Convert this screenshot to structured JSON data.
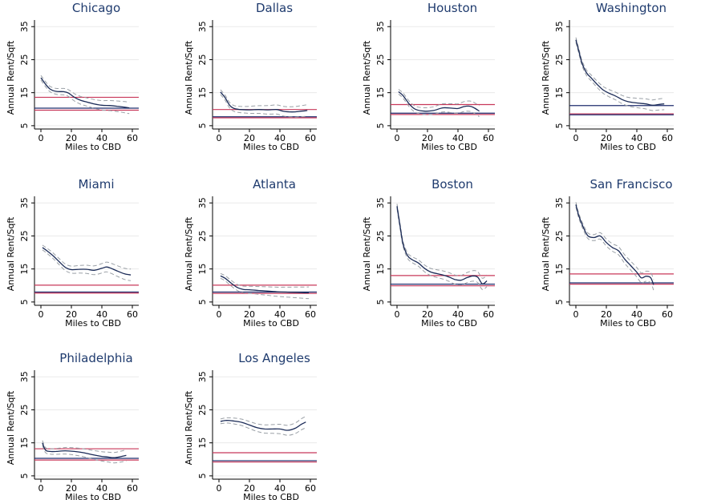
{
  "chart_data": [
    {
      "type": "line",
      "title": "Chicago",
      "xlabel": "Miles to CBD",
      "ylabel": "Annual Rent/Sqft",
      "xlim": [
        0,
        60
      ],
      "ylim": [
        4,
        37
      ],
      "xticks": [
        0,
        20,
        40,
        60
      ],
      "yticks": [
        5,
        15,
        25,
        35
      ],
      "hlines": [
        {
          "y": 13.6,
          "color": "#c8385a"
        },
        {
          "y": 10.3,
          "color": "#1f2d6e"
        },
        {
          "y": 9.7,
          "color": "#c8385a"
        }
      ],
      "series": [
        {
          "values": [
            [
              0,
              19.5
            ],
            [
              3,
              17.6
            ],
            [
              6,
              16.1
            ],
            [
              10,
              15.4
            ],
            [
              15,
              15.3
            ],
            [
              18,
              14.9
            ],
            [
              22,
              13.6
            ],
            [
              26,
              12.7
            ],
            [
              30,
              12.2
            ],
            [
              35,
              11.6
            ],
            [
              40,
              11.2
            ],
            [
              45,
              11.1
            ],
            [
              50,
              10.9
            ],
            [
              55,
              10.6
            ],
            [
              58,
              10.4
            ]
          ]
        }
      ]
    },
    {
      "type": "line",
      "title": "Dallas",
      "xlabel": "Miles to CBD",
      "ylabel": "Annual Rent/Sqft",
      "xlim": [
        0,
        60
      ],
      "ylim": [
        4,
        37
      ],
      "xticks": [
        0,
        20,
        40,
        60
      ],
      "yticks": [
        5,
        15,
        25,
        35
      ],
      "hlines": [
        {
          "y": 9.9,
          "color": "#c8385a"
        },
        {
          "y": 7.7,
          "color": "#1f2d6e"
        },
        {
          "y": 7.4,
          "color": "#c8385a"
        }
      ],
      "series": [
        {
          "values": [
            [
              1,
              15.2
            ],
            [
              4,
              13.5
            ],
            [
              7,
              11.2
            ],
            [
              10,
              10.2
            ],
            [
              14,
              9.9
            ],
            [
              20,
              9.8
            ],
            [
              26,
              9.9
            ],
            [
              32,
              9.8
            ],
            [
              38,
              9.9
            ],
            [
              42,
              9.4
            ],
            [
              46,
              9.2
            ],
            [
              50,
              9.2
            ],
            [
              54,
              9.4
            ],
            [
              58,
              9.6
            ]
          ]
        }
      ]
    },
    {
      "type": "line",
      "title": "Houston",
      "xlabel": "Miles to CBD",
      "ylabel": "Annual Rent/Sqft",
      "xlim": [
        0,
        60
      ],
      "ylim": [
        4,
        37
      ],
      "xticks": [
        0,
        20,
        40,
        60
      ],
      "yticks": [
        5,
        15,
        25,
        35
      ],
      "hlines": [
        {
          "y": 11.4,
          "color": "#c8385a"
        },
        {
          "y": 8.8,
          "color": "#1f2d6e"
        },
        {
          "y": 8.4,
          "color": "#c8385a"
        }
      ],
      "series": [
        {
          "values": [
            [
              1,
              15.3
            ],
            [
              4,
              14.1
            ],
            [
              8,
              11.6
            ],
            [
              12,
              10.0
            ],
            [
              18,
              9.4
            ],
            [
              24,
              9.6
            ],
            [
              30,
              10.4
            ],
            [
              36,
              10.3
            ],
            [
              40,
              10.2
            ],
            [
              44,
              10.8
            ],
            [
              48,
              10.9
            ],
            [
              51,
              10.3
            ],
            [
              54,
              9.4
            ]
          ]
        }
      ]
    },
    {
      "type": "line",
      "title": "Washington",
      "xlabel": "Miles to CBD",
      "ylabel": "Annual Rent/Sqft",
      "xlim": [
        0,
        60
      ],
      "ylim": [
        4,
        37
      ],
      "xticks": [
        0,
        20,
        40,
        60
      ],
      "yticks": [
        5,
        15,
        25,
        35
      ],
      "hlines": [
        {
          "y": 11.1,
          "color": "#1f2d6e"
        },
        {
          "y": 8.6,
          "color": "#c8385a"
        },
        {
          "y": 8.3,
          "color": "#1f2d6e"
        }
      ],
      "series": [
        {
          "values": [
            [
              0,
              31.0
            ],
            [
              2,
              27.5
            ],
            [
              4,
              24.0
            ],
            [
              7,
              21.0
            ],
            [
              10,
              19.5
            ],
            [
              14,
              17.5
            ],
            [
              18,
              15.8
            ],
            [
              22,
              14.8
            ],
            [
              26,
              14.0
            ],
            [
              30,
              13.0
            ],
            [
              34,
              12.3
            ],
            [
              38,
              12.0
            ],
            [
              42,
              11.8
            ],
            [
              46,
              11.6
            ],
            [
              50,
              11.2
            ],
            [
              54,
              11.4
            ],
            [
              58,
              11.6
            ]
          ]
        }
      ]
    },
    {
      "type": "line",
      "title": "Miami",
      "xlabel": "Miles to CBD",
      "ylabel": "Annual Rent/Sqft",
      "xlim": [
        0,
        60
      ],
      "ylim": [
        4,
        37
      ],
      "xticks": [
        0,
        20,
        40,
        60
      ],
      "yticks": [
        5,
        15,
        25,
        35
      ],
      "hlines": [
        {
          "y": 10.1,
          "color": "#c8385a"
        },
        {
          "y": 8.0,
          "color": "#1f2d6e"
        },
        {
          "y": 7.7,
          "color": "#c8385a"
        }
      ],
      "series": [
        {
          "values": [
            [
              1,
              21.5
            ],
            [
              4,
              20.5
            ],
            [
              8,
              19.0
            ],
            [
              12,
              17.2
            ],
            [
              16,
              15.5
            ],
            [
              20,
              14.8
            ],
            [
              25,
              14.9
            ],
            [
              30,
              14.9
            ],
            [
              35,
              14.6
            ],
            [
              40,
              15.2
            ],
            [
              43,
              15.6
            ],
            [
              46,
              15.2
            ],
            [
              50,
              14.4
            ],
            [
              55,
              13.5
            ],
            [
              59,
              13.2
            ]
          ]
        }
      ]
    },
    {
      "type": "line",
      "title": "Atlanta",
      "xlabel": "Miles to CBD",
      "ylabel": "Annual Rent/Sqft",
      "xlim": [
        0,
        60
      ],
      "ylim": [
        4,
        37
      ],
      "xticks": [
        0,
        20,
        40,
        60
      ],
      "yticks": [
        5,
        15,
        25,
        35
      ],
      "hlines": [
        {
          "y": 10.1,
          "color": "#c8385a"
        },
        {
          "y": 8.0,
          "color": "#1f2d6e"
        },
        {
          "y": 7.6,
          "color": "#c8385a"
        }
      ],
      "series": [
        {
          "values": [
            [
              1,
              12.9
            ],
            [
              4,
              12.2
            ],
            [
              8,
              10.7
            ],
            [
              12,
              9.4
            ],
            [
              16,
              8.8
            ],
            [
              20,
              8.7
            ],
            [
              26,
              8.5
            ],
            [
              32,
              8.3
            ],
            [
              38,
              8.1
            ],
            [
              44,
              8.0
            ],
            [
              50,
              7.9
            ],
            [
              56,
              7.8
            ],
            [
              59,
              7.8
            ]
          ]
        }
      ]
    },
    {
      "type": "line",
      "title": "Boston",
      "xlabel": "Miles to CBD",
      "ylabel": "Annual Rent/Sqft",
      "xlim": [
        0,
        60
      ],
      "ylim": [
        4,
        37
      ],
      "xticks": [
        0,
        20,
        40,
        60
      ],
      "yticks": [
        5,
        15,
        25,
        35
      ],
      "hlines": [
        {
          "y": 13.0,
          "color": "#c8385a"
        },
        {
          "y": 10.4,
          "color": "#1f2d6e"
        },
        {
          "y": 9.9,
          "color": "#c8385a"
        }
      ],
      "series": [
        {
          "values": [
            [
              0,
              34.0
            ],
            [
              2,
              28.0
            ],
            [
              4,
              22.5
            ],
            [
              7,
              19.0
            ],
            [
              10,
              17.8
            ],
            [
              14,
              16.8
            ],
            [
              18,
              15.2
            ],
            [
              22,
              14.1
            ],
            [
              26,
              13.6
            ],
            [
              30,
              13.2
            ],
            [
              34,
              12.6
            ],
            [
              38,
              11.8
            ],
            [
              42,
              11.6
            ],
            [
              46,
              12.4
            ],
            [
              50,
              12.9
            ],
            [
              53,
              12.5
            ],
            [
              56,
              10.5
            ],
            [
              59,
              11.4
            ]
          ]
        }
      ]
    },
    {
      "type": "line",
      "title": "San Francisco",
      "xlabel": "Miles to CBD",
      "ylabel": "Annual Rent/Sqft",
      "xlim": [
        0,
        60
      ],
      "ylim": [
        4,
        37
      ],
      "xticks": [
        0,
        20,
        40,
        60
      ],
      "yticks": [
        5,
        15,
        25,
        35
      ],
      "hlines": [
        {
          "y": 13.5,
          "color": "#c8385a"
        },
        {
          "y": 10.8,
          "color": "#1f2d6e"
        },
        {
          "y": 10.4,
          "color": "#c8385a"
        }
      ],
      "series": [
        {
          "values": [
            [
              0,
              34.5
            ],
            [
              2,
              31.0
            ],
            [
              5,
              27.5
            ],
            [
              8,
              25.0
            ],
            [
              12,
              24.5
            ],
            [
              16,
              25.0
            ],
            [
              20,
              23.0
            ],
            [
              24,
              21.5
            ],
            [
              28,
              20.5
            ],
            [
              32,
              18.0
            ],
            [
              36,
              16.0
            ],
            [
              40,
              14.0
            ],
            [
              43,
              12.3
            ],
            [
              46,
              12.8
            ],
            [
              49,
              12.4
            ],
            [
              51,
              10.2
            ]
          ]
        }
      ]
    },
    {
      "type": "line",
      "title": "Philadelphia",
      "xlabel": "Miles to CBD",
      "ylabel": "Annual Rent/Sqft",
      "xlim": [
        0,
        60
      ],
      "ylim": [
        4,
        37
      ],
      "xticks": [
        0,
        20,
        40,
        60
      ],
      "yticks": [
        5,
        15,
        25,
        35
      ],
      "hlines": [
        {
          "y": 13.2,
          "color": "#c8385a"
        },
        {
          "y": 10.3,
          "color": "#1f2d6e"
        },
        {
          "y": 9.8,
          "color": "#c8385a"
        }
      ],
      "series": [
        {
          "values": [
            [
              1,
              15.0
            ],
            [
              3,
              12.8
            ],
            [
              6,
              12.4
            ],
            [
              10,
              12.4
            ],
            [
              16,
              12.6
            ],
            [
              22,
              12.4
            ],
            [
              28,
              12.0
            ],
            [
              34,
              11.4
            ],
            [
              40,
              10.9
            ],
            [
              44,
              10.7
            ],
            [
              48,
              10.5
            ],
            [
              52,
              10.8
            ],
            [
              56,
              11.2
            ]
          ]
        }
      ]
    },
    {
      "type": "line",
      "title": "Los Angeles",
      "xlabel": "Miles to CBD",
      "ylabel": "Annual Rent/Sqft",
      "xlim": [
        0,
        60
      ],
      "ylim": [
        4,
        37
      ],
      "xticks": [
        0,
        20,
        40,
        60
      ],
      "yticks": [
        5,
        15,
        25,
        35
      ],
      "hlines": [
        {
          "y": 12.0,
          "color": "#c8385a"
        },
        {
          "y": 9.6,
          "color": "#1f2d6e"
        },
        {
          "y": 9.2,
          "color": "#c8385a"
        }
      ],
      "series": [
        {
          "values": [
            [
              1,
              21.5
            ],
            [
              5,
              21.8
            ],
            [
              10,
              21.6
            ],
            [
              15,
              21.2
            ],
            [
              20,
              20.4
            ],
            [
              25,
              19.6
            ],
            [
              30,
              19.2
            ],
            [
              35,
              19.2
            ],
            [
              40,
              19.2
            ],
            [
              45,
              18.8
            ],
            [
              50,
              19.4
            ],
            [
              54,
              20.6
            ],
            [
              57,
              21.3
            ]
          ]
        }
      ]
    }
  ]
}
